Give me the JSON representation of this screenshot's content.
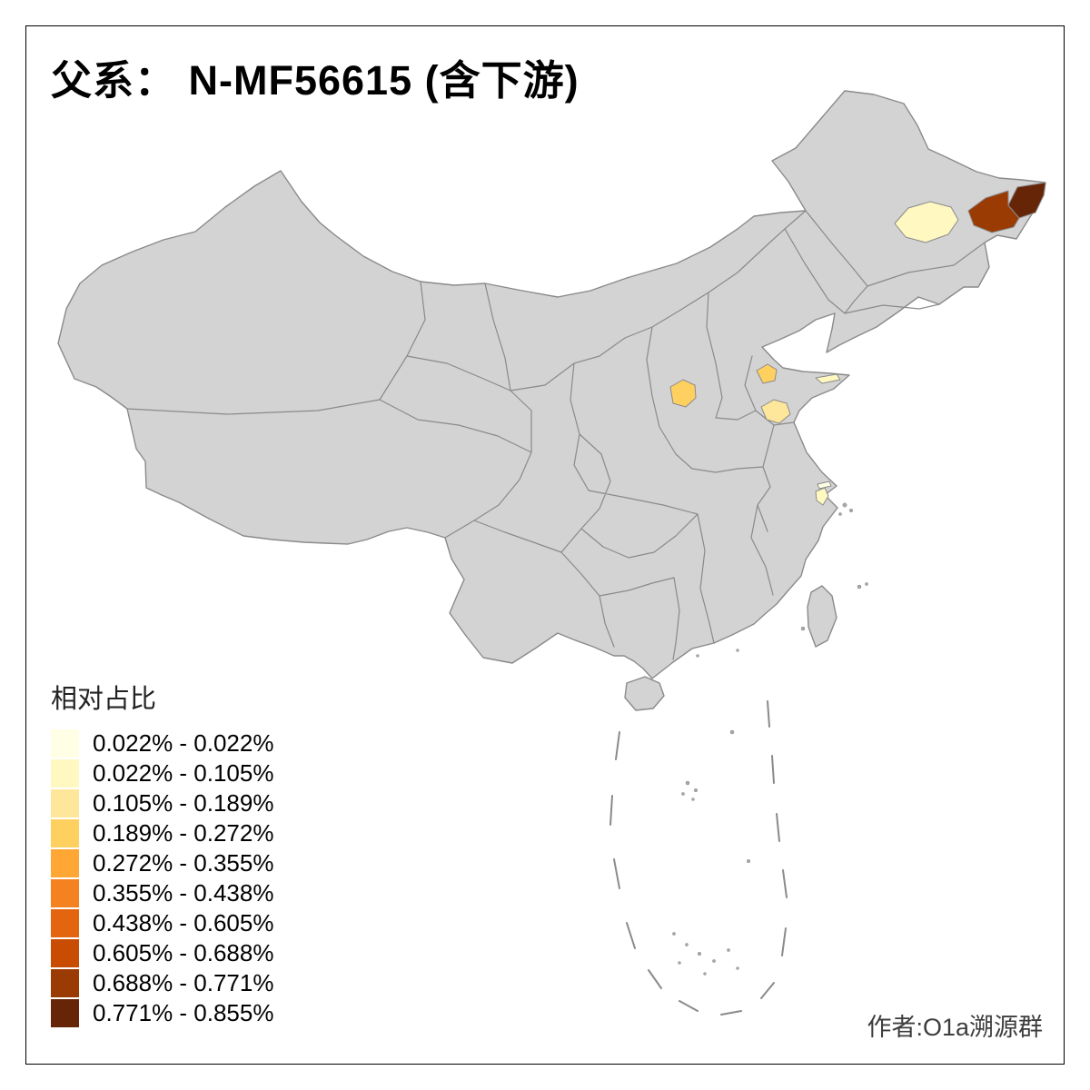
{
  "title": "父系： N-MF56615 (含下游)",
  "attribution": "作者:O1a溯源群",
  "legend": {
    "title": "相对占比",
    "items": [
      {
        "label": "0.022% - 0.022%",
        "color": "#FFFFE5"
      },
      {
        "label": "0.022% - 0.105%",
        "color": "#FFF8C1"
      },
      {
        "label": "0.105% - 0.189%",
        "color": "#FEE79A"
      },
      {
        "label": "0.189% - 0.272%",
        "color": "#FED060"
      },
      {
        "label": "0.272% - 0.355%",
        "color": "#FEA735"
      },
      {
        "label": "0.355% - 0.438%",
        "color": "#F58220"
      },
      {
        "label": "0.438% - 0.605%",
        "color": "#E3650F"
      },
      {
        "label": "0.605% - 0.688%",
        "color": "#C84C02"
      },
      {
        "label": "0.688% - 0.771%",
        "color": "#9A3B03"
      },
      {
        "label": "0.771% - 0.855%",
        "color": "#662506"
      }
    ]
  },
  "map": {
    "land_fill": "#D3D3D3",
    "border_color": "#8A8A8A",
    "background": "#FFFFFF",
    "frame_color": "#000000",
    "regions": [
      {
        "id": "heilongjiang-east-tip",
        "value_class": 9
      },
      {
        "id": "heilongjiang-east",
        "value_class": 8
      },
      {
        "id": "heilongjiang-central",
        "value_class": 1
      },
      {
        "id": "henan-north",
        "value_class": 3
      },
      {
        "id": "shandong-west",
        "value_class": 3
      },
      {
        "id": "shandong-southwest",
        "value_class": 2
      },
      {
        "id": "shandong-peninsula-coast",
        "value_class": 1
      },
      {
        "id": "chongming",
        "value_class": 0
      },
      {
        "id": "shanghai",
        "value_class": 1
      }
    ]
  }
}
